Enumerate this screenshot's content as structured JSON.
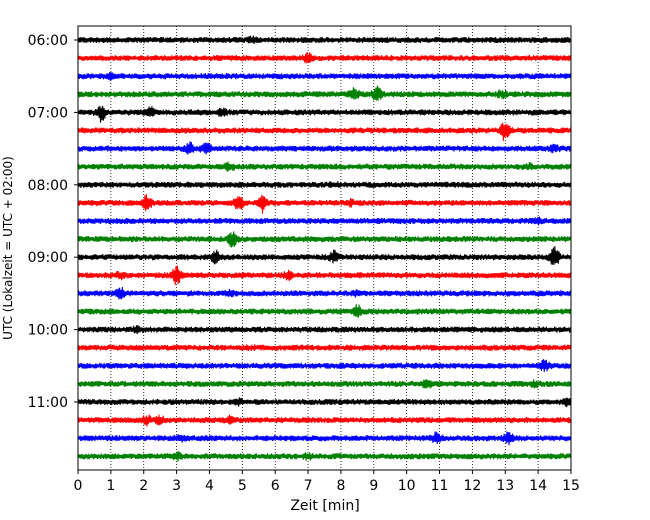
{
  "chart_data": {
    "type": "line",
    "subtype": "helicorder",
    "xlabel": "Zeit  [min]",
    "ylabel": "UTC (Lokalzeit = UTC + 02:00)",
    "xlim": [
      0,
      15
    ],
    "x_ticks": [
      "0",
      "1",
      "2",
      "3",
      "4",
      "5",
      "6",
      "7",
      "8",
      "9",
      "10",
      "11",
      "12",
      "13",
      "14",
      "15"
    ],
    "y_ticks": [
      "06:00",
      "07:00",
      "08:00",
      "09:00",
      "10:00",
      "11:00"
    ],
    "vertical_grid": "dotted",
    "trace_minutes": 15,
    "trace_colors": [
      "#000000",
      "#ff0000",
      "#0000ff",
      "#008000"
    ],
    "traces": [
      {
        "start": "06:00",
        "events": [
          [
            5.3,
            1.6
          ]
        ]
      },
      {
        "start": "06:15",
        "events": [
          [
            7.0,
            2.2
          ]
        ]
      },
      {
        "start": "06:30",
        "events": [
          [
            1.0,
            1.5
          ]
        ]
      },
      {
        "start": "06:45",
        "events": [
          [
            8.4,
            3.0
          ],
          [
            9.1,
            3.2
          ],
          [
            12.9,
            1.8
          ]
        ]
      },
      {
        "start": "07:00",
        "events": [
          [
            0.7,
            3.5
          ],
          [
            2.2,
            2.2
          ],
          [
            4.4,
            2.0
          ]
        ]
      },
      {
        "start": "07:15",
        "events": [
          [
            13.0,
            4.0
          ]
        ]
      },
      {
        "start": "07:30",
        "events": [
          [
            3.4,
            2.6
          ],
          [
            3.9,
            2.8
          ],
          [
            14.5,
            1.8
          ]
        ]
      },
      {
        "start": "07:45",
        "events": [
          [
            4.6,
            2.0
          ],
          [
            13.7,
            1.6
          ]
        ]
      },
      {
        "start": "08:00",
        "events": [
          [
            7.8,
            1.4
          ]
        ]
      },
      {
        "start": "08:15",
        "events": [
          [
            2.1,
            3.2
          ],
          [
            4.9,
            3.4
          ],
          [
            5.6,
            3.8
          ],
          [
            8.3,
            1.6
          ]
        ]
      },
      {
        "start": "08:30",
        "events": [
          [
            14.0,
            1.6
          ]
        ]
      },
      {
        "start": "08:45",
        "events": [
          [
            4.7,
            3.2
          ]
        ]
      },
      {
        "start": "09:00",
        "events": [
          [
            4.2,
            2.6
          ],
          [
            7.8,
            2.6
          ],
          [
            14.5,
            4.0
          ]
        ]
      },
      {
        "start": "09:15",
        "events": [
          [
            1.3,
            2.0
          ],
          [
            3.0,
            3.6
          ],
          [
            6.4,
            2.0
          ]
        ]
      },
      {
        "start": "09:30",
        "events": [
          [
            1.3,
            2.6
          ],
          [
            4.6,
            1.8
          ],
          [
            8.4,
            1.6
          ]
        ]
      },
      {
        "start": "09:45",
        "events": [
          [
            8.5,
            2.6
          ]
        ]
      },
      {
        "start": "10:00",
        "events": [
          [
            1.8,
            1.6
          ]
        ]
      },
      {
        "start": "10:15",
        "events": [
          [
            5.3,
            1.3
          ]
        ]
      },
      {
        "start": "10:30",
        "events": [
          [
            14.2,
            2.4
          ]
        ]
      },
      {
        "start": "10:45",
        "events": [
          [
            10.6,
            2.2
          ],
          [
            13.9,
            1.6
          ]
        ]
      },
      {
        "start": "11:00",
        "events": [
          [
            4.9,
            1.6
          ],
          [
            14.9,
            1.8
          ]
        ]
      },
      {
        "start": "11:15",
        "events": [
          [
            2.1,
            2.2
          ],
          [
            2.5,
            2.0
          ],
          [
            4.6,
            1.8
          ]
        ]
      },
      {
        "start": "11:30",
        "events": [
          [
            3.1,
            1.8
          ],
          [
            10.9,
            2.4
          ],
          [
            13.1,
            2.6
          ]
        ]
      },
      {
        "start": "11:45",
        "events": [
          [
            3.0,
            2.0
          ],
          [
            7.0,
            1.6
          ]
        ]
      }
    ]
  }
}
